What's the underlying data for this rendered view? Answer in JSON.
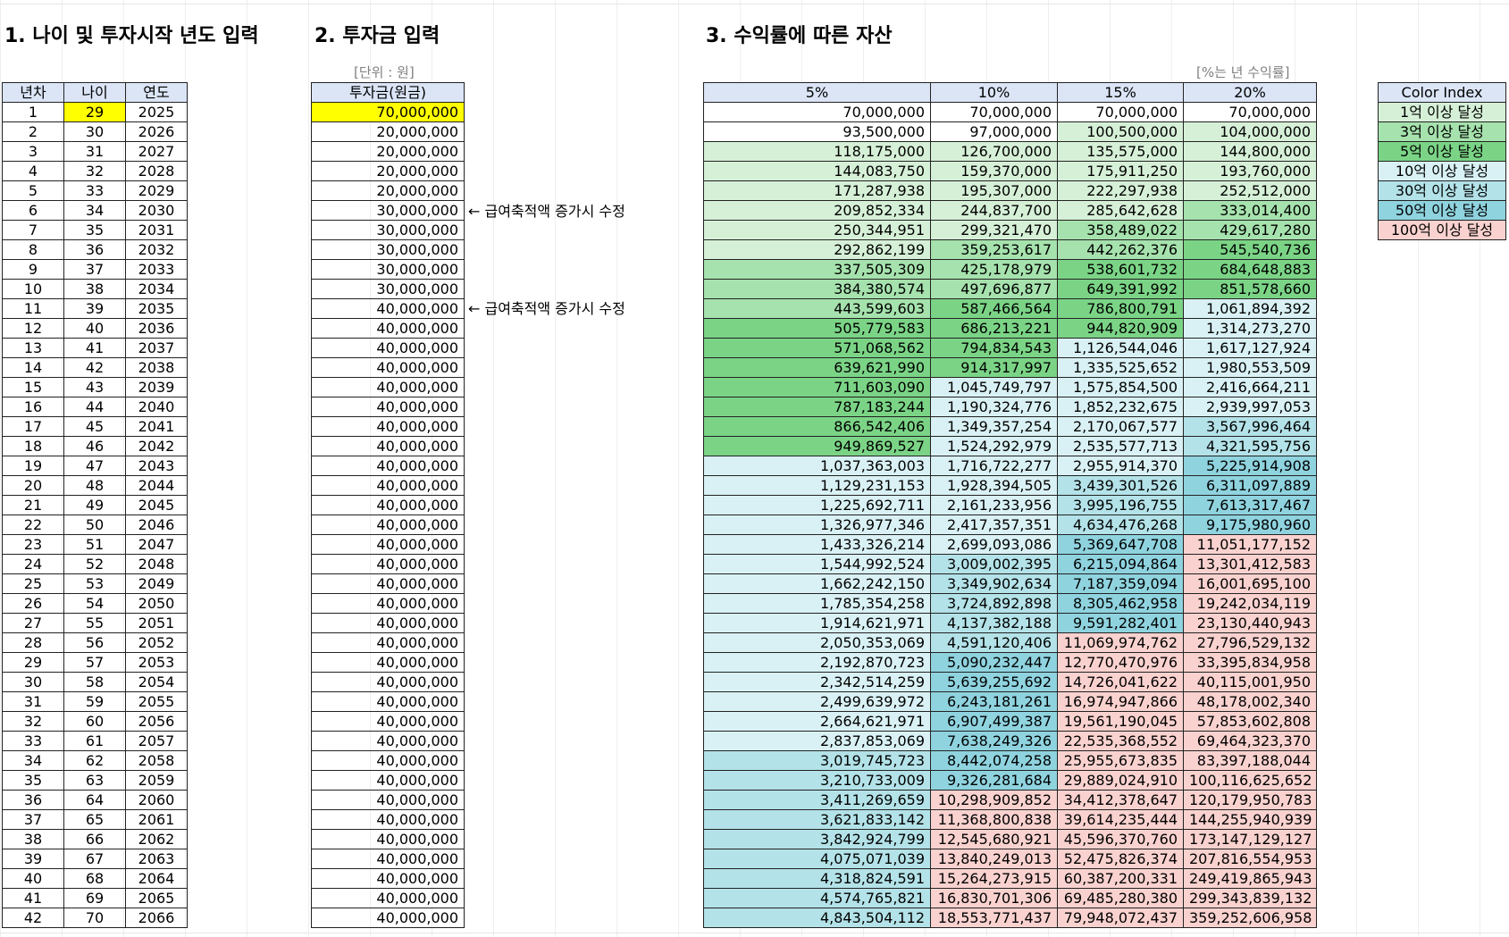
{
  "sections": {
    "s1": "1. 나이 및 투자시작 년도 입력",
    "s2": "2. 투자금 입력",
    "s3": "3. 수익률에 따른 자산"
  },
  "unit_note": "[단위 : 원]",
  "rate_note": "[%는 년 수익률]",
  "t1_headers": [
    "년차",
    "나이",
    "연도"
  ],
  "t2_header": "투자금(원금)",
  "t3_headers": [
    "5%",
    "10%",
    "15%",
    "20%"
  ],
  "arrow_notes": [
    "← 급여축적액 증가시 수정",
    "← 급여축적액 증가시 수정"
  ],
  "color_index": {
    "title": "Color Index",
    "items": [
      {
        "label": "1억 이상 달성",
        "color": "#d6f0d7"
      },
      {
        "label": "3억 이상 달성",
        "color": "#a6e2ad"
      },
      {
        "label": "5억 이상 달성",
        "color": "#7bd486"
      },
      {
        "label": "10억 이상 달성",
        "color": "#d9f1f4"
      },
      {
        "label": "30억 이상 달성",
        "color": "#b3e2e8"
      },
      {
        "label": "50억 이상 달성",
        "color": "#8fd3df"
      },
      {
        "label": "100억 이상 달성",
        "color": "#f9d2cf"
      }
    ]
  },
  "rows": [
    {
      "n": "1",
      "age": "29",
      "year": "2025",
      "inv": "70,000,000",
      "v": [
        "70,000,000",
        "70,000,000",
        "70,000,000",
        "70,000,000"
      ],
      "lv": [
        0,
        0,
        0,
        0
      ]
    },
    {
      "n": "2",
      "age": "30",
      "year": "2026",
      "inv": "20,000,000",
      "v": [
        "93,500,000",
        "97,000,000",
        "100,500,000",
        "104,000,000"
      ],
      "lv": [
        0,
        0,
        1,
        1
      ]
    },
    {
      "n": "3",
      "age": "31",
      "year": "2027",
      "inv": "20,000,000",
      "v": [
        "118,175,000",
        "126,700,000",
        "135,575,000",
        "144,800,000"
      ],
      "lv": [
        1,
        1,
        1,
        1
      ]
    },
    {
      "n": "4",
      "age": "32",
      "year": "2028",
      "inv": "20,000,000",
      "v": [
        "144,083,750",
        "159,370,000",
        "175,911,250",
        "193,760,000"
      ],
      "lv": [
        1,
        1,
        1,
        1
      ]
    },
    {
      "n": "5",
      "age": "33",
      "year": "2029",
      "inv": "20,000,000",
      "v": [
        "171,287,938",
        "195,307,000",
        "222,297,938",
        "252,512,000"
      ],
      "lv": [
        1,
        1,
        1,
        1
      ]
    },
    {
      "n": "6",
      "age": "34",
      "year": "2030",
      "inv": "30,000,000",
      "v": [
        "209,852,334",
        "244,837,700",
        "285,642,628",
        "333,014,400"
      ],
      "lv": [
        1,
        1,
        1,
        2
      ]
    },
    {
      "n": "7",
      "age": "35",
      "year": "2031",
      "inv": "30,000,000",
      "v": [
        "250,344,951",
        "299,321,470",
        "358,489,022",
        "429,617,280"
      ],
      "lv": [
        1,
        1,
        2,
        2
      ]
    },
    {
      "n": "8",
      "age": "36",
      "year": "2032",
      "inv": "30,000,000",
      "v": [
        "292,862,199",
        "359,253,617",
        "442,262,376",
        "545,540,736"
      ],
      "lv": [
        1,
        2,
        2,
        3
      ]
    },
    {
      "n": "9",
      "age": "37",
      "year": "2033",
      "inv": "30,000,000",
      "v": [
        "337,505,309",
        "425,178,979",
        "538,601,732",
        "684,648,883"
      ],
      "lv": [
        2,
        2,
        3,
        3
      ]
    },
    {
      "n": "10",
      "age": "38",
      "year": "2034",
      "inv": "30,000,000",
      "v": [
        "384,380,574",
        "497,696,877",
        "649,391,992",
        "851,578,660"
      ],
      "lv": [
        2,
        2,
        3,
        3
      ]
    },
    {
      "n": "11",
      "age": "39",
      "year": "2035",
      "inv": "40,000,000",
      "v": [
        "443,599,603",
        "587,466,564",
        "786,800,791",
        "1,061,894,392"
      ],
      "lv": [
        2,
        3,
        3,
        4
      ]
    },
    {
      "n": "12",
      "age": "40",
      "year": "2036",
      "inv": "40,000,000",
      "v": [
        "505,779,583",
        "686,213,221",
        "944,820,909",
        "1,314,273,270"
      ],
      "lv": [
        3,
        3,
        3,
        4
      ]
    },
    {
      "n": "13",
      "age": "41",
      "year": "2037",
      "inv": "40,000,000",
      "v": [
        "571,068,562",
        "794,834,543",
        "1,126,544,046",
        "1,617,127,924"
      ],
      "lv": [
        3,
        3,
        4,
        4
      ]
    },
    {
      "n": "14",
      "age": "42",
      "year": "2038",
      "inv": "40,000,000",
      "v": [
        "639,621,990",
        "914,317,997",
        "1,335,525,652",
        "1,980,553,509"
      ],
      "lv": [
        3,
        3,
        4,
        4
      ]
    },
    {
      "n": "15",
      "age": "43",
      "year": "2039",
      "inv": "40,000,000",
      "v": [
        "711,603,090",
        "1,045,749,797",
        "1,575,854,500",
        "2,416,664,211"
      ],
      "lv": [
        3,
        4,
        4,
        4
      ]
    },
    {
      "n": "16",
      "age": "44",
      "year": "2040",
      "inv": "40,000,000",
      "v": [
        "787,183,244",
        "1,190,324,776",
        "1,852,232,675",
        "2,939,997,053"
      ],
      "lv": [
        3,
        4,
        4,
        4
      ]
    },
    {
      "n": "17",
      "age": "45",
      "year": "2041",
      "inv": "40,000,000",
      "v": [
        "866,542,406",
        "1,349,357,254",
        "2,170,067,577",
        "3,567,996,464"
      ],
      "lv": [
        3,
        4,
        4,
        5
      ]
    },
    {
      "n": "18",
      "age": "46",
      "year": "2042",
      "inv": "40,000,000",
      "v": [
        "949,869,527",
        "1,524,292,979",
        "2,535,577,713",
        "4,321,595,756"
      ],
      "lv": [
        3,
        4,
        4,
        5
      ]
    },
    {
      "n": "19",
      "age": "47",
      "year": "2043",
      "inv": "40,000,000",
      "v": [
        "1,037,363,003",
        "1,716,722,277",
        "2,955,914,370",
        "5,225,914,908"
      ],
      "lv": [
        4,
        4,
        4,
        6
      ]
    },
    {
      "n": "20",
      "age": "48",
      "year": "2044",
      "inv": "40,000,000",
      "v": [
        "1,129,231,153",
        "1,928,394,505",
        "3,439,301,526",
        "6,311,097,889"
      ],
      "lv": [
        4,
        4,
        5,
        6
      ]
    },
    {
      "n": "21",
      "age": "49",
      "year": "2045",
      "inv": "40,000,000",
      "v": [
        "1,225,692,711",
        "2,161,233,956",
        "3,995,196,755",
        "7,613,317,467"
      ],
      "lv": [
        4,
        4,
        5,
        6
      ]
    },
    {
      "n": "22",
      "age": "50",
      "year": "2046",
      "inv": "40,000,000",
      "v": [
        "1,326,977,346",
        "2,417,357,351",
        "4,634,476,268",
        "9,175,980,960"
      ],
      "lv": [
        4,
        4,
        5,
        6
      ]
    },
    {
      "n": "23",
      "age": "51",
      "year": "2047",
      "inv": "40,000,000",
      "v": [
        "1,433,326,214",
        "2,699,093,086",
        "5,369,647,708",
        "11,051,177,152"
      ],
      "lv": [
        4,
        4,
        6,
        7
      ]
    },
    {
      "n": "24",
      "age": "52",
      "year": "2048",
      "inv": "40,000,000",
      "v": [
        "1,544,992,524",
        "3,009,002,395",
        "6,215,094,864",
        "13,301,412,583"
      ],
      "lv": [
        4,
        5,
        6,
        7
      ]
    },
    {
      "n": "25",
      "age": "53",
      "year": "2049",
      "inv": "40,000,000",
      "v": [
        "1,662,242,150",
        "3,349,902,634",
        "7,187,359,094",
        "16,001,695,100"
      ],
      "lv": [
        4,
        5,
        6,
        7
      ]
    },
    {
      "n": "26",
      "age": "54",
      "year": "2050",
      "inv": "40,000,000",
      "v": [
        "1,785,354,258",
        "3,724,892,898",
        "8,305,462,958",
        "19,242,034,119"
      ],
      "lv": [
        4,
        5,
        6,
        7
      ]
    },
    {
      "n": "27",
      "age": "55",
      "year": "2051",
      "inv": "40,000,000",
      "v": [
        "1,914,621,971",
        "4,137,382,188",
        "9,591,282,401",
        "23,130,440,943"
      ],
      "lv": [
        4,
        5,
        6,
        7
      ]
    },
    {
      "n": "28",
      "age": "56",
      "year": "2052",
      "inv": "40,000,000",
      "v": [
        "2,050,353,069",
        "4,591,120,406",
        "11,069,974,762",
        "27,796,529,132"
      ],
      "lv": [
        4,
        5,
        7,
        7
      ]
    },
    {
      "n": "29",
      "age": "57",
      "year": "2053",
      "inv": "40,000,000",
      "v": [
        "2,192,870,723",
        "5,090,232,447",
        "12,770,470,976",
        "33,395,834,958"
      ],
      "lv": [
        4,
        6,
        7,
        7
      ]
    },
    {
      "n": "30",
      "age": "58",
      "year": "2054",
      "inv": "40,000,000",
      "v": [
        "2,342,514,259",
        "5,639,255,692",
        "14,726,041,622",
        "40,115,001,950"
      ],
      "lv": [
        4,
        6,
        7,
        7
      ]
    },
    {
      "n": "31",
      "age": "59",
      "year": "2055",
      "inv": "40,000,000",
      "v": [
        "2,499,639,972",
        "6,243,181,261",
        "16,974,947,866",
        "48,178,002,340"
      ],
      "lv": [
        4,
        6,
        7,
        7
      ]
    },
    {
      "n": "32",
      "age": "60",
      "year": "2056",
      "inv": "40,000,000",
      "v": [
        "2,664,621,971",
        "6,907,499,387",
        "19,561,190,045",
        "57,853,602,808"
      ],
      "lv": [
        4,
        6,
        7,
        7
      ]
    },
    {
      "n": "33",
      "age": "61",
      "year": "2057",
      "inv": "40,000,000",
      "v": [
        "2,837,853,069",
        "7,638,249,326",
        "22,535,368,552",
        "69,464,323,370"
      ],
      "lv": [
        4,
        6,
        7,
        7
      ]
    },
    {
      "n": "34",
      "age": "62",
      "year": "2058",
      "inv": "40,000,000",
      "v": [
        "3,019,745,723",
        "8,442,074,258",
        "25,955,673,835",
        "83,397,188,044"
      ],
      "lv": [
        5,
        6,
        7,
        7
      ]
    },
    {
      "n": "35",
      "age": "63",
      "year": "2059",
      "inv": "40,000,000",
      "v": [
        "3,210,733,009",
        "9,326,281,684",
        "29,889,024,910",
        "100,116,625,652"
      ],
      "lv": [
        5,
        6,
        7,
        7
      ]
    },
    {
      "n": "36",
      "age": "64",
      "year": "2060",
      "inv": "40,000,000",
      "v": [
        "3,411,269,659",
        "10,298,909,852",
        "34,412,378,647",
        "120,179,950,783"
      ],
      "lv": [
        5,
        7,
        7,
        7
      ]
    },
    {
      "n": "37",
      "age": "65",
      "year": "2061",
      "inv": "40,000,000",
      "v": [
        "3,621,833,142",
        "11,368,800,838",
        "39,614,235,444",
        "144,255,940,939"
      ],
      "lv": [
        5,
        7,
        7,
        7
      ]
    },
    {
      "n": "38",
      "age": "66",
      "year": "2062",
      "inv": "40,000,000",
      "v": [
        "3,842,924,799",
        "12,545,680,921",
        "45,596,370,760",
        "173,147,129,127"
      ],
      "lv": [
        5,
        7,
        7,
        7
      ]
    },
    {
      "n": "39",
      "age": "67",
      "year": "2063",
      "inv": "40,000,000",
      "v": [
        "4,075,071,039",
        "13,840,249,013",
        "52,475,826,374",
        "207,816,554,953"
      ],
      "lv": [
        5,
        7,
        7,
        7
      ]
    },
    {
      "n": "40",
      "age": "68",
      "year": "2064",
      "inv": "40,000,000",
      "v": [
        "4,318,824,591",
        "15,264,273,915",
        "60,387,200,331",
        "249,419,865,943"
      ],
      "lv": [
        5,
        7,
        7,
        7
      ]
    },
    {
      "n": "41",
      "age": "69",
      "year": "2065",
      "inv": "40,000,000",
      "v": [
        "4,574,765,821",
        "16,830,701,306",
        "69,485,280,380",
        "299,343,839,132"
      ],
      "lv": [
        5,
        7,
        7,
        7
      ]
    },
    {
      "n": "42",
      "age": "70",
      "year": "2066",
      "inv": "40,000,000",
      "v": [
        "4,843,504,112",
        "18,553,771,437",
        "79,948,072,437",
        "359,252,606,958"
      ],
      "lv": [
        5,
        7,
        7,
        7
      ]
    }
  ]
}
